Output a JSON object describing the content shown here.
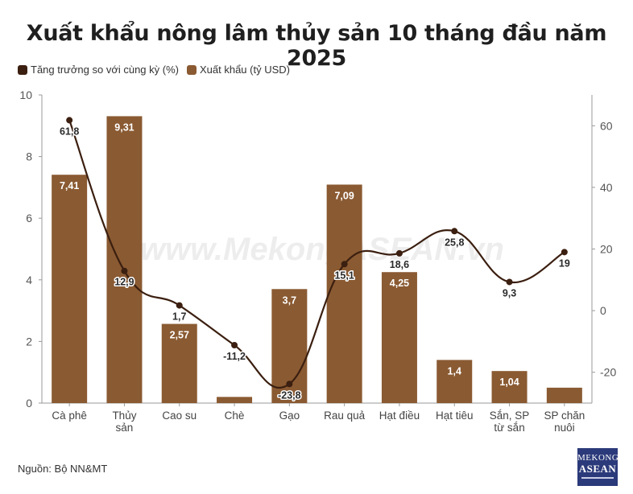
{
  "title": "Xuất khẩu nông lâm thủy sản 10 tháng đầu năm 2025",
  "legend": [
    {
      "label": "Tăng trưởng so với cùng kỳ (%)",
      "color": "#3b1f10"
    },
    {
      "label": "Xuất khẩu (tỷ USD)",
      "color": "#8a5a32"
    }
  ],
  "source": "Nguồn: Bộ NN&MT",
  "watermark": "www.MekongASEAN.vn",
  "logo": {
    "line1": "MEKONG",
    "line2": "ASEAN"
  },
  "chart_data": {
    "type": "bar",
    "categories": [
      [
        "Cà phê"
      ],
      [
        "Thủy",
        "sản"
      ],
      [
        "Cao su"
      ],
      [
        "Chè"
      ],
      [
        "Gạo"
      ],
      [
        "Rau quả"
      ],
      [
        "Hạt điều"
      ],
      [
        "Hạt tiêu"
      ],
      [
        "Sắn, SP",
        "từ sắn"
      ],
      [
        "SP chăn",
        "nuôi"
      ]
    ],
    "series": [
      {
        "name": "Xuất khẩu (tỷ USD)",
        "type": "bar",
        "axis": "left",
        "color": "#8a5a32",
        "values": [
          7.41,
          9.31,
          2.57,
          0.2,
          3.7,
          7.09,
          4.25,
          1.4,
          1.04,
          0.5
        ],
        "labels": [
          "7,41",
          "9,31",
          "2,57",
          "",
          "3,7",
          "7,09",
          "4,25",
          "1,4",
          "1,04",
          ""
        ]
      },
      {
        "name": "Tăng trưởng so với cùng kỳ (%)",
        "type": "line",
        "axis": "right",
        "color": "#3b1f10",
        "values": [
          61.8,
          12.9,
          1.7,
          -11.2,
          -23.8,
          15.1,
          18.6,
          25.8,
          9.3,
          19
        ],
        "labels": [
          "61,8",
          "12,9",
          "1,7",
          "-11,2",
          "-23,8",
          "15,1",
          "18,6",
          "25,8",
          "9,3",
          "19"
        ]
      }
    ],
    "y_left": {
      "range": [
        0,
        10
      ],
      "ticks": [
        0,
        2,
        4,
        6,
        8,
        10
      ]
    },
    "y_right": {
      "range": [
        -30,
        70
      ],
      "ticks": [
        -20,
        0,
        20,
        40,
        60
      ]
    },
    "grid": false,
    "legend_position": "top-left"
  }
}
